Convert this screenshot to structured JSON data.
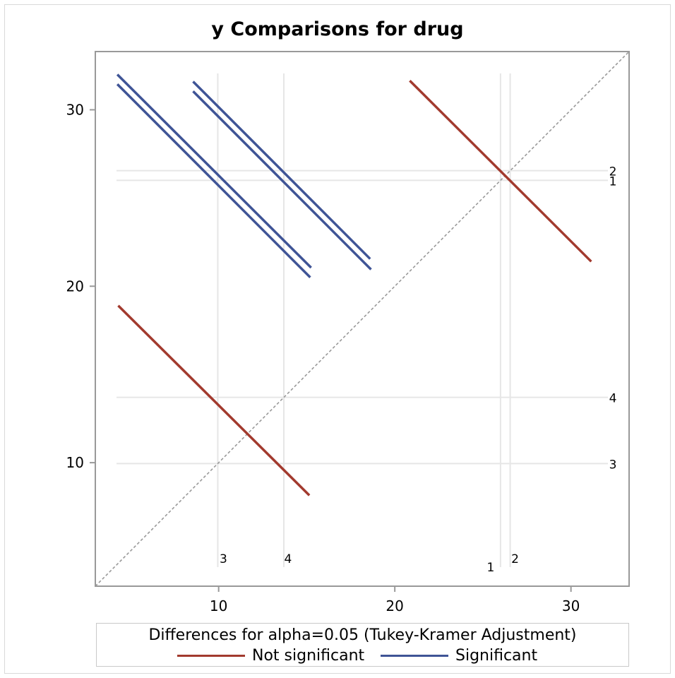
{
  "chart_data": {
    "type": "line",
    "title": "y Comparisons for drug",
    "xlim": [
      3.0,
      33.3
    ],
    "ylim": [
      3.0,
      33.3
    ],
    "x_ticks": [
      10,
      20,
      30
    ],
    "y_ticks": [
      10,
      20,
      30
    ],
    "diagonal": {
      "style": "dashed",
      "color": "#999999"
    },
    "groups": [
      {
        "label": "1",
        "mean": 26.0
      },
      {
        "label": "2",
        "mean": 26.55
      },
      {
        "label": "3",
        "mean": 9.95
      },
      {
        "label": "4",
        "mean": 13.7
      }
    ],
    "comparisons": [
      {
        "pair": [
          "2",
          "1"
        ],
        "significant": false,
        "from": [
          20.85,
          31.65
        ],
        "to": [
          31.15,
          21.4
        ]
      },
      {
        "pair": [
          "3",
          "4"
        ],
        "significant": false,
        "from": [
          4.3,
          18.9
        ],
        "to": [
          15.15,
          8.15
        ]
      },
      {
        "pair": [
          "3",
          "2"
        ],
        "significant": true,
        "from": [
          4.25,
          32.0
        ],
        "to": [
          15.25,
          21.05
        ]
      },
      {
        "pair": [
          "3",
          "1"
        ],
        "significant": true,
        "from": [
          4.25,
          31.45
        ],
        "to": [
          15.2,
          20.5
        ]
      },
      {
        "pair": [
          "4",
          "2"
        ],
        "significant": true,
        "from": [
          8.55,
          31.6
        ],
        "to": [
          18.6,
          21.55
        ]
      },
      {
        "pair": [
          "4",
          "1"
        ],
        "significant": true,
        "from": [
          8.55,
          31.05
        ],
        "to": [
          18.65,
          20.95
        ]
      }
    ],
    "colors": {
      "not_significant": "#a23a2e",
      "significant": "#3f5496",
      "reference": "#e6e6e6",
      "axis": "#999999"
    },
    "legend": {
      "title": "Differences for alpha=0.05 (Tukey-Kramer Adjustment)",
      "entries": [
        {
          "label": "Not significant",
          "color": "#a23a2e"
        },
        {
          "label": "Significant",
          "color": "#3f5496"
        }
      ],
      "position": "bottom"
    }
  }
}
